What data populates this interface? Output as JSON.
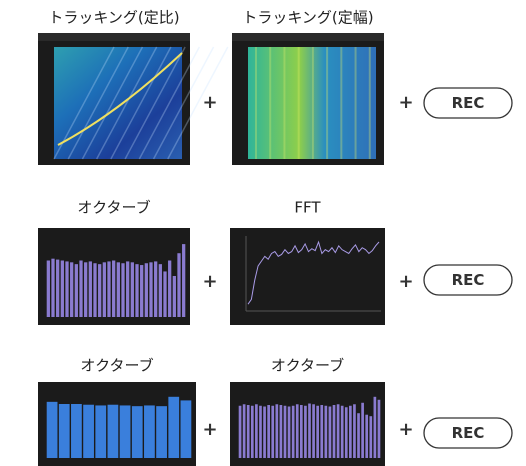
{
  "rows": [
    {
      "panels": [
        {
          "label": "トラッキング(定比)",
          "kind": "spectrogram"
        },
        {
          "label": "トラッキング(定幅)",
          "kind": "spectrogram"
        }
      ],
      "operator": "+",
      "action": "REC"
    },
    {
      "panels": [
        {
          "label": "オクターブ",
          "kind": "bars",
          "color": "#8a7bd0",
          "values": [
            62,
            64,
            63,
            62,
            61,
            60,
            58,
            62,
            60,
            61,
            59,
            58,
            60,
            61,
            62,
            60,
            59,
            61,
            60,
            58,
            57,
            59,
            60,
            61,
            58,
            50,
            62,
            45,
            70,
            80
          ]
        },
        {
          "label": "FFT",
          "kind": "line",
          "color": "#a99be6",
          "values": [
            5,
            10,
            30,
            45,
            50,
            55,
            52,
            58,
            60,
            55,
            57,
            62,
            58,
            60,
            66,
            59,
            62,
            68,
            60,
            63,
            61,
            70,
            58,
            62,
            60,
            64,
            59,
            66,
            62,
            60,
            58,
            63,
            67,
            60,
            64,
            62,
            58,
            61,
            66,
            70
          ]
        }
      ],
      "operator": "+",
      "action": "REC"
    },
    {
      "panels": [
        {
          "label": "オクターブ",
          "kind": "bars",
          "color": "#3a7fdc",
          "values": [
            78,
            75,
            75,
            74,
            73,
            74,
            73,
            72,
            73,
            72,
            85,
            80
          ]
        },
        {
          "label": "オクターブ",
          "kind": "bars",
          "color": "#8a7bd0",
          "values": [
            70,
            72,
            71,
            70,
            72,
            70,
            69,
            71,
            70,
            72,
            71,
            70,
            69,
            70,
            72,
            71,
            70,
            73,
            72,
            70,
            71,
            70,
            69,
            71,
            72,
            70,
            68,
            70,
            72,
            60,
            74,
            58,
            56,
            82,
            78
          ]
        }
      ],
      "operator": "+",
      "action": "REC"
    }
  ]
}
